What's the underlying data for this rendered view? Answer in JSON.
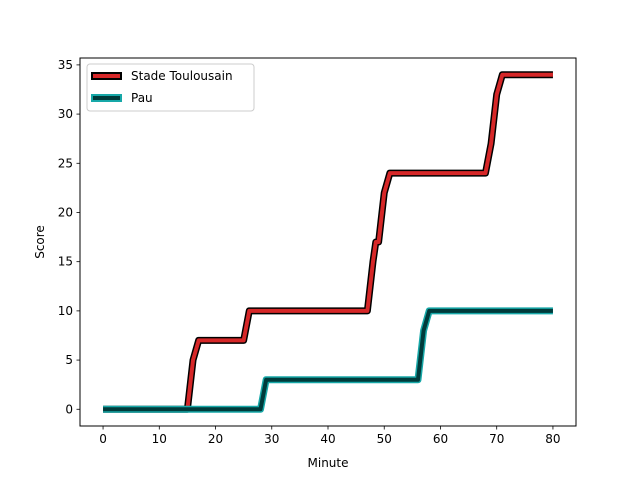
{
  "chart_data": {
    "type": "line",
    "title": "",
    "xlabel": "Minute",
    "ylabel": "Score",
    "xlim": [
      -4.1,
      84.1
    ],
    "ylim": [
      -1.7,
      35.7
    ],
    "xticks": [
      0,
      10,
      20,
      30,
      40,
      50,
      60,
      70,
      80
    ],
    "yticks": [
      0,
      5,
      10,
      15,
      20,
      25,
      30,
      35
    ],
    "grid": false,
    "legend_position": "top-left",
    "series": [
      {
        "name": "Stade Toulousain",
        "color": "#d62728",
        "outline": "#000000",
        "x": [
          0,
          15,
          16,
          17,
          25,
          26,
          47,
          48,
          48.5,
          49,
          50,
          51,
          68,
          69,
          70,
          71,
          80
        ],
        "y": [
          0,
          0,
          5,
          7,
          7,
          10,
          10,
          15,
          17,
          17,
          22,
          24,
          24,
          27,
          32,
          34,
          34
        ]
      },
      {
        "name": "Pau",
        "color": "#003b3b",
        "outline": "#17a8a8",
        "x": [
          0,
          28,
          29,
          56,
          57,
          58,
          80
        ],
        "y": [
          0,
          0,
          3,
          3,
          8,
          10,
          10
        ]
      }
    ]
  }
}
